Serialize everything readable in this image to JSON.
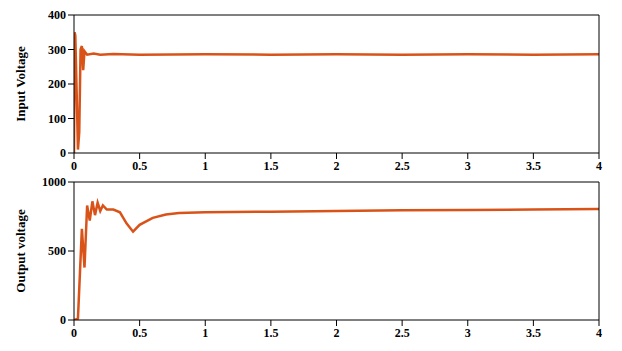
{
  "chart_data": [
    {
      "type": "line",
      "y_label": "Input Voltage",
      "color": "#d95319",
      "grid": false,
      "x": [
        0,
        0.005,
        0.01,
        0.02,
        0.03,
        0.04,
        0.05,
        0.06,
        0.07,
        0.08,
        0.1,
        0.15,
        0.2,
        0.3,
        0.5,
        1,
        1.5,
        2,
        2.5,
        3,
        3.5,
        4
      ],
      "values": [
        0,
        350,
        340,
        180,
        10,
        60,
        300,
        310,
        240,
        295,
        285,
        288,
        285,
        287,
        285,
        286,
        285,
        286,
        285,
        286,
        285,
        286
      ],
      "xlim": [
        0,
        4
      ],
      "xticks": [
        0,
        0.5,
        1,
        1.5,
        2,
        2.5,
        3,
        3.5,
        4
      ],
      "ylim": [
        0,
        400
      ],
      "yticks": [
        0,
        100,
        200,
        300,
        400
      ]
    },
    {
      "type": "line",
      "y_label": "Output voltage",
      "color": "#d95319",
      "grid": false,
      "x": [
        0,
        0.03,
        0.06,
        0.08,
        0.1,
        0.12,
        0.14,
        0.16,
        0.18,
        0.2,
        0.22,
        0.25,
        0.3,
        0.35,
        0.4,
        0.45,
        0.5,
        0.6,
        0.7,
        0.8,
        1,
        1.5,
        2,
        2.5,
        3,
        3.5,
        4
      ],
      "values": [
        0,
        10,
        660,
        380,
        830,
        720,
        860,
        760,
        850,
        790,
        830,
        800,
        800,
        780,
        700,
        640,
        690,
        740,
        765,
        775,
        780,
        785,
        790,
        795,
        798,
        800,
        805
      ],
      "xlim": [
        0,
        4
      ],
      "xticks": [
        0,
        0.5,
        1,
        1.5,
        2,
        2.5,
        3,
        3.5,
        4
      ],
      "ylim": [
        0,
        1000
      ],
      "yticks": [
        0,
        500,
        1000
      ]
    }
  ]
}
